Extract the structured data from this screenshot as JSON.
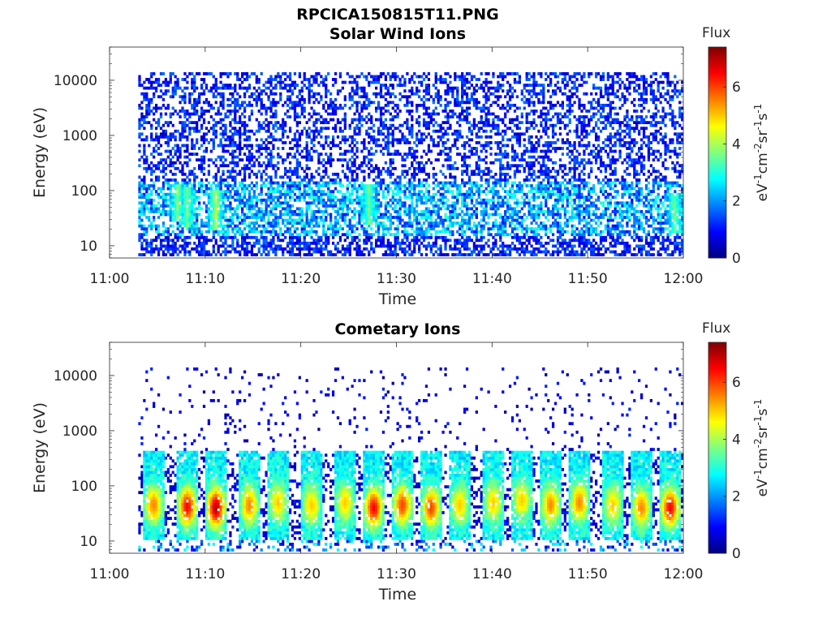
{
  "figure_title": "RPCICA150815T11.PNG",
  "chart_data": [
    {
      "type": "heatmap",
      "title": "Solar Wind Ions",
      "xlabel": "Time",
      "ylabel": "Energy (eV)",
      "x_ticks": [
        "11:00",
        "11:10",
        "11:20",
        "11:30",
        "11:40",
        "11:50",
        "12:00"
      ],
      "x_range": [
        "11:00",
        "12:00"
      ],
      "y_scale": "log",
      "y_range": [
        6,
        40000
      ],
      "y_ticks": [
        "10",
        "100",
        "1000",
        "10000"
      ],
      "data_start": "11:03",
      "colorbar": {
        "title": "Flux",
        "label": "eV-1cm-2sr-1s-1",
        "range": [
          0,
          7.4
        ],
        "ticks": [
          "0",
          "2",
          "4",
          "6"
        ],
        "colormap": "jet"
      },
      "description_of_values": "sparse low-level flux (0-2) spread 6 eV - 12 keV, brighter (2-4) near 20-150 eV",
      "hot_spots": [
        {
          "time": "11:07",
          "energy": 60,
          "flux": 4
        },
        {
          "time": "11:08",
          "energy": 50,
          "flux": 4
        },
        {
          "time": "11:11",
          "energy": 45,
          "flux": 4.5
        },
        {
          "time": "11:27",
          "energy": 55,
          "flux": 4
        },
        {
          "time": "11:59",
          "energy": 40,
          "flux": 4
        }
      ]
    },
    {
      "type": "heatmap",
      "title": "Cometary Ions",
      "xlabel": "Time",
      "ylabel": "Energy (eV)",
      "x_ticks": [
        "11:00",
        "11:10",
        "11:20",
        "11:30",
        "11:40",
        "11:50",
        "12:00"
      ],
      "x_range": [
        "11:00",
        "12:00"
      ],
      "y_scale": "log",
      "y_range": [
        6,
        40000
      ],
      "y_ticks": [
        "10",
        "100",
        "1000",
        "10000"
      ],
      "data_start": "11:03",
      "colorbar": {
        "title": "Flux",
        "label": "eV-1cm-2sr-1s-1",
        "range": [
          0,
          7.4
        ],
        "ticks": [
          "0",
          "2",
          "4",
          "6"
        ],
        "colormap": "jet"
      },
      "description_of_values": "periodic ion bursts between 12 and 400 eV peaking near 30-60 eV",
      "bursts": [
        {
          "time": "11:04.5",
          "peak_energy": 45,
          "peak_flux": 5.5
        },
        {
          "time": "11:08",
          "peak_energy": 42,
          "peak_flux": 6.5
        },
        {
          "time": "11:11",
          "peak_energy": 40,
          "peak_flux": 7
        },
        {
          "time": "11:14.5",
          "peak_energy": 45,
          "peak_flux": 5.5
        },
        {
          "time": "11:17.5",
          "peak_energy": 50,
          "peak_flux": 5
        },
        {
          "time": "11:21",
          "peak_energy": 45,
          "peak_flux": 5
        },
        {
          "time": "11:24.5",
          "peak_energy": 50,
          "peak_flux": 5
        },
        {
          "time": "11:27.5",
          "peak_energy": 40,
          "peak_flux": 6.5
        },
        {
          "time": "11:30.5",
          "peak_energy": 45,
          "peak_flux": 6
        },
        {
          "time": "11:33.5",
          "peak_energy": 40,
          "peak_flux": 6
        },
        {
          "time": "11:36.5",
          "peak_energy": 45,
          "peak_flux": 5
        },
        {
          "time": "11:40",
          "peak_energy": 50,
          "peak_flux": 5
        },
        {
          "time": "11:43",
          "peak_energy": 55,
          "peak_flux": 5
        },
        {
          "time": "11:46",
          "peak_energy": 45,
          "peak_flux": 5.5
        },
        {
          "time": "11:49",
          "peak_energy": 50,
          "peak_flux": 5.5
        },
        {
          "time": "11:52.5",
          "peak_energy": 45,
          "peak_flux": 5
        },
        {
          "time": "11:55.5",
          "peak_energy": 40,
          "peak_flux": 5.5
        },
        {
          "time": "11:58.5",
          "peak_energy": 40,
          "peak_flux": 6.5
        }
      ]
    }
  ]
}
